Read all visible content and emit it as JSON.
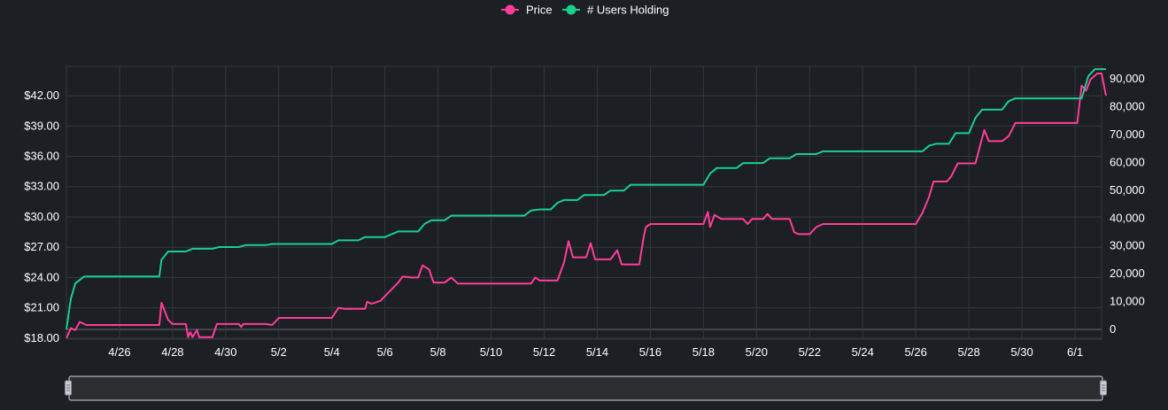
{
  "chart_data": {
    "type": "line",
    "title": "",
    "xlabel": "",
    "ylabel_left": "",
    "ylabel_right": "",
    "x_unit": "date",
    "x_ticks": [
      "4/26",
      "4/28",
      "4/30",
      "5/2",
      "5/4",
      "5/6",
      "5/8",
      "5/10",
      "5/12",
      "5/14",
      "5/16",
      "5/18",
      "5/20",
      "5/22",
      "5/24",
      "5/26",
      "5/28",
      "5/30",
      "6/1"
    ],
    "x_range": [
      "4/24",
      "6/2"
    ],
    "y_left": {
      "ticks": [
        "$18.00",
        "$21.00",
        "$24.00",
        "$27.00",
        "$30.00",
        "$33.00",
        "$36.00",
        "$39.00",
        "$42.00"
      ],
      "range": [
        17.9,
        44.9
      ]
    },
    "y_right": {
      "ticks": [
        "0",
        "10,000",
        "20,000",
        "30,000",
        "40,000",
        "50,000",
        "60,000",
        "70,000",
        "80,000",
        "90,000"
      ],
      "range": [
        -3500,
        94500
      ]
    },
    "grid": true,
    "legend_position": "top-center",
    "series": [
      {
        "name": "Price",
        "axis": "left",
        "color": "#ff3d9a",
        "points": [
          [
            "4/24 00:00",
            18.0
          ],
          [
            "4/24 04:00",
            19.0
          ],
          [
            "4/24 08:00",
            18.8
          ],
          [
            "4/24 12:00",
            19.6
          ],
          [
            "4/24 18:00",
            19.3
          ],
          [
            "4/26 00:00",
            19.3
          ],
          [
            "4/27 12:00",
            19.3
          ],
          [
            "4/27 14:00",
            21.5
          ],
          [
            "4/27 20:00",
            19.8
          ],
          [
            "4/28 00:00",
            19.4
          ],
          [
            "4/28 12:00",
            19.4
          ],
          [
            "4/28 14:00",
            18.1
          ],
          [
            "4/28 16:00",
            18.6
          ],
          [
            "4/28 18:00",
            18.1
          ],
          [
            "4/28 22:00",
            18.8
          ],
          [
            "4/29 00:00",
            18.1
          ],
          [
            "4/29 12:00",
            18.1
          ],
          [
            "4/29 16:00",
            19.4
          ],
          [
            "4/30 12:00",
            19.4
          ],
          [
            "4/30 14:00",
            19.1
          ],
          [
            "4/30 16:00",
            19.4
          ],
          [
            "5/1 12:00",
            19.4
          ],
          [
            "5/1 18:00",
            19.3
          ],
          [
            "5/2 00:00",
            20.0
          ],
          [
            "5/4 00:00",
            20.0
          ],
          [
            "5/4 06:00",
            21.0
          ],
          [
            "5/4 12:00",
            20.9
          ],
          [
            "5/5 06:00",
            20.9
          ],
          [
            "5/5 08:00",
            21.6
          ],
          [
            "5/5 12:00",
            21.4
          ],
          [
            "5/5 20:00",
            21.7
          ],
          [
            "5/6 12:00",
            23.5
          ],
          [
            "5/6 16:00",
            24.1
          ],
          [
            "5/7 00:00",
            24.0
          ],
          [
            "5/7 06:00",
            24.0
          ],
          [
            "5/7 10:00",
            25.2
          ],
          [
            "5/7 16:00",
            24.8
          ],
          [
            "5/7 20:00",
            23.5
          ],
          [
            "5/8 06:00",
            23.5
          ],
          [
            "5/8 12:00",
            24.0
          ],
          [
            "5/8 18:00",
            23.4
          ],
          [
            "5/11 12:00",
            23.4
          ],
          [
            "5/11 16:00",
            24.0
          ],
          [
            "5/11 20:00",
            23.7
          ],
          [
            "5/12 12:00",
            23.7
          ],
          [
            "5/12 18:00",
            25.5
          ],
          [
            "5/12 22:00",
            27.6
          ],
          [
            "5/13 02:00",
            26.0
          ],
          [
            "5/13 14:00",
            26.0
          ],
          [
            "5/13 18:00",
            27.4
          ],
          [
            "5/13 22:00",
            25.8
          ],
          [
            "5/14 12:00",
            25.8
          ],
          [
            "5/14 18:00",
            26.7
          ],
          [
            "5/14 22:00",
            25.3
          ],
          [
            "5/15 14:00",
            25.3
          ],
          [
            "5/15 18:00",
            28.0
          ],
          [
            "5/15 20:00",
            29.0
          ],
          [
            "5/16 00:00",
            29.3
          ],
          [
            "5/18 00:00",
            29.3
          ],
          [
            "5/18 04:00",
            30.5
          ],
          [
            "5/18 06:00",
            29.0
          ],
          [
            "5/18 10:00",
            30.2
          ],
          [
            "5/18 16:00",
            29.8
          ],
          [
            "5/19 12:00",
            29.8
          ],
          [
            "5/19 16:00",
            29.3
          ],
          [
            "5/19 20:00",
            29.8
          ],
          [
            "5/20 06:00",
            29.8
          ],
          [
            "5/20 10:00",
            30.3
          ],
          [
            "5/20 14:00",
            29.8
          ],
          [
            "5/21 06:00",
            29.8
          ],
          [
            "5/21 10:00",
            28.5
          ],
          [
            "5/21 14:00",
            28.3
          ],
          [
            "5/22 00:00",
            28.3
          ],
          [
            "5/22 06:00",
            29.0
          ],
          [
            "5/22 12:00",
            29.3
          ],
          [
            "5/26 00:00",
            29.3
          ],
          [
            "5/26 06:00",
            30.4
          ],
          [
            "5/26 12:00",
            32.0
          ],
          [
            "5/26 16:00",
            33.5
          ],
          [
            "5/27 04:00",
            33.5
          ],
          [
            "5/27 08:00",
            34.0
          ],
          [
            "5/27 14:00",
            35.3
          ],
          [
            "5/28 06:00",
            35.3
          ],
          [
            "5/28 10:00",
            37.0
          ],
          [
            "5/28 14:00",
            38.6
          ],
          [
            "5/28 18:00",
            37.5
          ],
          [
            "5/29 06:00",
            37.5
          ],
          [
            "5/29 12:00",
            38.0
          ],
          [
            "5/29 18:00",
            39.3
          ],
          [
            "6/1 02:00",
            39.3
          ],
          [
            "6/1 06:00",
            43.0
          ],
          [
            "6/1 10:00",
            42.5
          ],
          [
            "6/1 14:00",
            43.6
          ],
          [
            "6/1 20:00",
            44.2
          ],
          [
            "6/2 00:00",
            44.2
          ],
          [
            "6/2 04:00",
            42.0
          ]
        ]
      },
      {
        "name": "# Users Holding",
        "axis": "right",
        "color": "#19d08e",
        "points": [
          [
            "4/24 00:00",
            0
          ],
          [
            "4/24 04:00",
            11000
          ],
          [
            "4/24 08:00",
            16500
          ],
          [
            "4/24 16:00",
            19000
          ],
          [
            "4/27 12:00",
            19000
          ],
          [
            "4/27 14:00",
            25000
          ],
          [
            "4/27 20:00",
            28000
          ],
          [
            "4/28 12:00",
            28000
          ],
          [
            "4/28 18:00",
            29000
          ],
          [
            "4/29 12:00",
            29000
          ],
          [
            "4/29 18:00",
            29600
          ],
          [
            "4/30 12:00",
            29600
          ],
          [
            "4/30 18:00",
            30300
          ],
          [
            "5/1 12:00",
            30300
          ],
          [
            "5/1 18:00",
            30700
          ],
          [
            "5/4 00:00",
            30700
          ],
          [
            "5/4 06:00",
            32000
          ],
          [
            "5/5 00:00",
            32000
          ],
          [
            "5/5 06:00",
            33200
          ],
          [
            "5/6 00:00",
            33200
          ],
          [
            "5/6 06:00",
            34200
          ],
          [
            "5/6 12:00",
            35200
          ],
          [
            "5/7 06:00",
            35200
          ],
          [
            "5/7 12:00",
            38000
          ],
          [
            "5/7 18:00",
            39200
          ],
          [
            "5/8 06:00",
            39200
          ],
          [
            "5/8 12:00",
            40900
          ],
          [
            "5/11 06:00",
            40900
          ],
          [
            "5/11 12:00",
            42700
          ],
          [
            "5/11 20:00",
            43100
          ],
          [
            "5/12 06:00",
            43100
          ],
          [
            "5/12 12:00",
            45500
          ],
          [
            "5/12 18:00",
            46500
          ],
          [
            "5/13 06:00",
            46500
          ],
          [
            "5/13 12:00",
            48300
          ],
          [
            "5/14 06:00",
            48300
          ],
          [
            "5/14 12:00",
            49900
          ],
          [
            "5/15 00:00",
            49900
          ],
          [
            "5/15 06:00",
            52000
          ],
          [
            "5/18 00:00",
            52000
          ],
          [
            "5/18 06:00",
            56000
          ],
          [
            "5/18 12:00",
            58000
          ],
          [
            "5/19 06:00",
            58000
          ],
          [
            "5/19 12:00",
            59800
          ],
          [
            "5/20 06:00",
            59800
          ],
          [
            "5/20 12:00",
            61500
          ],
          [
            "5/21 06:00",
            61500
          ],
          [
            "5/21 12:00",
            63000
          ],
          [
            "5/22 06:00",
            63000
          ],
          [
            "5/22 12:00",
            64000
          ],
          [
            "5/26 06:00",
            64000
          ],
          [
            "5/26 12:00",
            66000
          ],
          [
            "5/26 18:00",
            66700
          ],
          [
            "5/27 06:00",
            66700
          ],
          [
            "5/27 12:00",
            70500
          ],
          [
            "5/28 00:00",
            70500
          ],
          [
            "5/28 06:00",
            76000
          ],
          [
            "5/28 12:00",
            79000
          ],
          [
            "5/29 06:00",
            79000
          ],
          [
            "5/29 12:00",
            82000
          ],
          [
            "5/29 18:00",
            83000
          ],
          [
            "6/1 06:00",
            83000
          ],
          [
            "6/1 12:00",
            91000
          ],
          [
            "6/1 18:00",
            93500
          ],
          [
            "6/2 04:00",
            93500
          ]
        ]
      }
    ],
    "slider": {
      "handles": [
        "start",
        "end"
      ]
    }
  }
}
